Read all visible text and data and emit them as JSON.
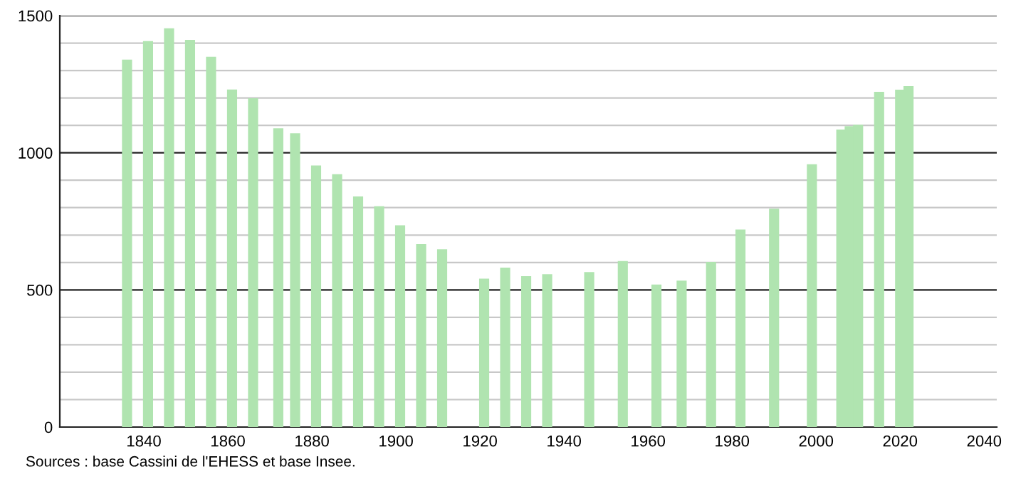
{
  "chart_data": {
    "type": "bar",
    "x": [
      1836,
      1841,
      1846,
      1851,
      1856,
      1861,
      1866,
      1872,
      1876,
      1881,
      1886,
      1891,
      1896,
      1901,
      1906,
      1911,
      1921,
      1926,
      1931,
      1936,
      1946,
      1954,
      1962,
      1968,
      1975,
      1982,
      1990,
      1999,
      2006,
      2008,
      2010,
      2015,
      2020,
      2022
    ],
    "values": [
      1340,
      1407,
      1454,
      1412,
      1350,
      1231,
      1199,
      1089,
      1071,
      954,
      922,
      841,
      805,
      736,
      667,
      648,
      541,
      581,
      550,
      557,
      565,
      605,
      520,
      534,
      602,
      720,
      796,
      958,
      1085,
      1097,
      1102,
      1222,
      1230,
      1243
    ],
    "color": "#b0e4b0",
    "xlim": [
      1820,
      2043
    ],
    "xticks": [
      1840,
      1860,
      1880,
      1900,
      1920,
      1940,
      1960,
      1980,
      2000,
      2020,
      2040
    ],
    "ylim": [
      0,
      1500
    ],
    "yticks": [
      0,
      {
        "value": 100,
        "label": null
      },
      {
        "value": 200,
        "label": null
      },
      {
        "value": 300,
        "label": null
      },
      {
        "value": 400,
        "label": null
      },
      500,
      {
        "value": 600,
        "label": null
      },
      {
        "value": 700,
        "label": null
      },
      {
        "value": 800,
        "label": null
      },
      {
        "value": 900,
        "label": null
      },
      1000,
      {
        "value": 1100,
        "label": null
      },
      {
        "value": 1200,
        "label": null
      },
      {
        "value": 1300,
        "label": null
      },
      {
        "value": 1400,
        "label": null
      },
      1500
    ],
    "grid": "y",
    "annotations": [
      "Sources : base Cassini de l'EHESS et base Insee."
    ]
  }
}
